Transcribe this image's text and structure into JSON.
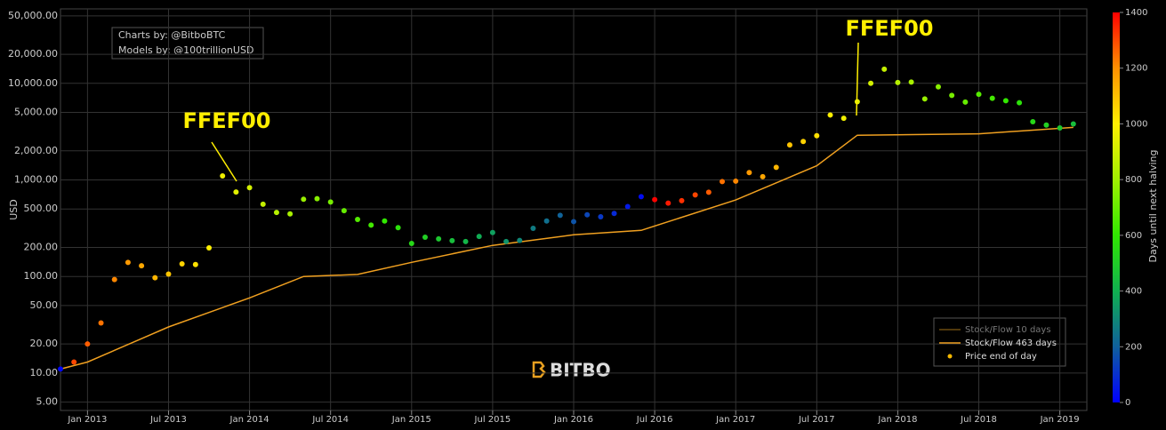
{
  "chart_data": {
    "type": "scatter",
    "ylabel": "USD",
    "log_y": true,
    "grid": true,
    "credits": [
      "Charts by: @BitboBTC",
      "Models by: @100trillionUSD"
    ],
    "watermark": "BITBO",
    "annotations": [
      "FFEF00",
      "FFEF00"
    ],
    "annotation_color": "#ffef00",
    "legend": "bottom-right",
    "xlim": [
      "2012-11",
      "2019-03"
    ],
    "xticks": [
      {
        "value": "2013-01",
        "label": "Jan 2013"
      },
      {
        "value": "2013-07",
        "label": "Jul 2013"
      },
      {
        "value": "2014-01",
        "label": "Jan 2014"
      },
      {
        "value": "2014-07",
        "label": "Jul 2014"
      },
      {
        "value": "2015-01",
        "label": "Jan 2015"
      },
      {
        "value": "2015-07",
        "label": "Jul 2015"
      },
      {
        "value": "2016-01",
        "label": "Jan 2016"
      },
      {
        "value": "2016-07",
        "label": "Jul 2016"
      },
      {
        "value": "2017-01",
        "label": "Jan 2017"
      },
      {
        "value": "2017-07",
        "label": "Jul 2017"
      },
      {
        "value": "2018-01",
        "label": "Jan 2018"
      },
      {
        "value": "2018-07",
        "label": "Jul 2018"
      },
      {
        "value": "2019-01",
        "label": "Jan 2019"
      }
    ],
    "ylim": [
      4.1,
      59000
    ],
    "yticks": [
      {
        "value": 5,
        "label": "5.00"
      },
      {
        "value": 10,
        "label": "10.00"
      },
      {
        "value": 20,
        "label": "20.00"
      },
      {
        "value": 50,
        "label": "50.00"
      },
      {
        "value": 100,
        "label": "100.00"
      },
      {
        "value": 200,
        "label": "200.00"
      },
      {
        "value": 500,
        "label": "500.00"
      },
      {
        "value": 1000,
        "label": "1,000.00"
      },
      {
        "value": 2000,
        "label": "2,000.00"
      },
      {
        "value": 5000,
        "label": "5,000.00"
      },
      {
        "value": 10000,
        "label": "10,000.00"
      },
      {
        "value": 20000,
        "label": "20,000.00"
      },
      {
        "value": 50000,
        "label": "50,000.00"
      }
    ],
    "colorbar_label": "Days until next halving",
    "clim": [
      0,
      1400
    ],
    "cticks": [
      0,
      200,
      400,
      600,
      800,
      1000,
      1200,
      1400
    ],
    "colorscale": [
      "#0000ff",
      "#10609c",
      "#10b050",
      "#30e800",
      "#a0f000",
      "#ffef00",
      "#ff9000",
      "#ff0000"
    ],
    "series": [
      {
        "name": "Stock/Flow 10 days",
        "type": "line",
        "color": "#6b4a10"
      },
      {
        "name": "Stock/Flow 463 days",
        "type": "line",
        "color": "#f0a020",
        "x": [
          "2012-11",
          "2013-01",
          "2013-07",
          "2014-01",
          "2014-05",
          "2014-09",
          "2015-01",
          "2015-07",
          "2016-01",
          "2016-06",
          "2017-01",
          "2017-07",
          "2017-10",
          "2018-07",
          "2019-02"
        ],
        "values": [
          11,
          13,
          30,
          60,
          100,
          105,
          140,
          210,
          270,
          300,
          620,
          1400,
          2900,
          3000,
          3500
        ]
      },
      {
        "name": "Price end of day",
        "type": "scatter",
        "color": "#f5b800",
        "x": [
          "2012-11",
          "2012-12",
          "2013-01",
          "2013-02",
          "2013-03",
          "2013-04",
          "2013-05",
          "2013-06",
          "2013-07",
          "2013-08",
          "2013-09",
          "2013-10",
          "2013-11",
          "2013-12",
          "2014-01",
          "2014-02",
          "2014-03",
          "2014-04",
          "2014-05",
          "2014-06",
          "2014-07",
          "2014-08",
          "2014-09",
          "2014-10",
          "2014-11",
          "2014-12",
          "2015-01",
          "2015-02",
          "2015-03",
          "2015-04",
          "2015-05",
          "2015-06",
          "2015-07",
          "2015-08",
          "2015-09",
          "2015-10",
          "2015-11",
          "2015-12",
          "2016-01",
          "2016-02",
          "2016-03",
          "2016-04",
          "2016-05",
          "2016-06",
          "2016-07",
          "2016-08",
          "2016-09",
          "2016-10",
          "2016-11",
          "2016-12",
          "2017-01",
          "2017-02",
          "2017-03",
          "2017-04",
          "2017-05",
          "2017-06",
          "2017-07",
          "2017-08",
          "2017-09",
          "2017-10",
          "2017-11",
          "2017-12",
          "2018-01",
          "2018-02",
          "2018-03",
          "2018-04",
          "2018-05",
          "2018-06",
          "2018-07",
          "2018-08",
          "2018-09",
          "2018-10",
          "2018-11",
          "2018-12",
          "2019-01",
          "2019-02"
        ],
        "values": [
          11,
          13,
          20,
          33,
          93,
          140,
          129,
          97,
          106,
          135,
          133,
          198,
          1100,
          750,
          830,
          560,
          460,
          445,
          630,
          640,
          590,
          480,
          390,
          340,
          375,
          320,
          220,
          255,
          245,
          235,
          230,
          260,
          285,
          230,
          236,
          315,
          375,
          430,
          370,
          435,
          415,
          450,
          530,
          670,
          625,
          575,
          610,
          700,
          745,
          960,
          970,
          1190,
          1080,
          1350,
          2300,
          2500,
          2870,
          4700,
          4350,
          6450,
          10000,
          14000,
          10200,
          10300,
          6900,
          9200,
          7500,
          6400,
          7700,
          7000,
          6600,
          6300,
          4000,
          3700,
          3450,
          3800
        ],
        "color_values": [
          13,
          1302,
          1271,
          1240,
          1212,
          1181,
          1151,
          1120,
          1090,
          1059,
          1028,
          998,
          967,
          937,
          906,
          875,
          847,
          816,
          786,
          755,
          725,
          694,
          663,
          633,
          602,
          572,
          541,
          510,
          482,
          451,
          421,
          390,
          360,
          329,
          298,
          268,
          237,
          207,
          176,
          145,
          116,
          85,
          55,
          24,
          1396,
          1365,
          1334,
          1304,
          1273,
          1243,
          1212,
          1181,
          1153,
          1122,
          1092,
          1061,
          1031,
          1000,
          969,
          939,
          908,
          878,
          847,
          816,
          788,
          757,
          727,
          696,
          666,
          635,
          604,
          574,
          543,
          513,
          482,
          451
        ]
      }
    ]
  }
}
